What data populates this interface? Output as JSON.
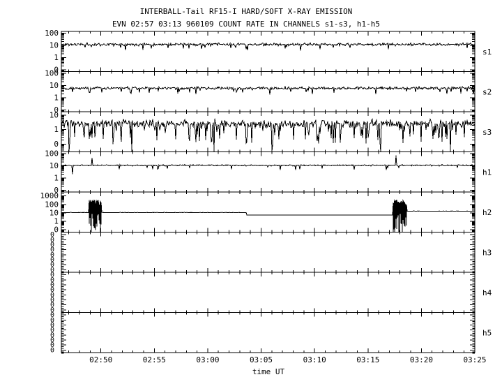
{
  "colors": {
    "foreground": "#000000",
    "background": "#ffffff"
  },
  "chart_data": {
    "type": "line",
    "title": "INTERBALL-Tail RF15-I HARD/SOFT X-RAY EMISSION",
    "subtitle": "EVN 02:57 03:13 960109  COUNT RATE IN CHANNELS s1-s3, h1-h5",
    "xlabel": "time UT",
    "grid": false,
    "legend": "none",
    "x_axis": {
      "start_minute": 166.3,
      "end_minute": 205,
      "minor_tick_minutes": 1,
      "major_ticks": [
        {
          "minute": 170,
          "label": "02:50"
        },
        {
          "minute": 175,
          "label": "02:55"
        },
        {
          "minute": 180,
          "label": "03:00"
        },
        {
          "minute": 185,
          "label": "03:05"
        },
        {
          "minute": 190,
          "label": "03:10"
        },
        {
          "minute": 195,
          "label": "03:15"
        },
        {
          "minute": 200,
          "label": "03:20"
        },
        {
          "minute": 205,
          "label": "03:25"
        }
      ]
    },
    "panels": [
      {
        "id": "s1",
        "label": "s1",
        "scale": "log",
        "ylim": [
          0.07,
          140
        ],
        "yticks": [
          {
            "v": 100,
            "l": "100"
          },
          {
            "v": 10,
            "l": "10"
          },
          {
            "v": 1,
            "l": "1"
          },
          {
            "v": 0.1,
            "l": "0"
          }
        ],
        "signal": {
          "kind": "noisy",
          "base": 12,
          "noise_dex": 0.11,
          "drop_prob": 0.04,
          "drop_factor": 0.5,
          "seed": 11
        }
      },
      {
        "id": "s2",
        "label": "s2",
        "scale": "log",
        "ylim": [
          0.07,
          140
        ],
        "yticks": [
          {
            "v": 100,
            "l": "100"
          },
          {
            "v": 10,
            "l": "10"
          },
          {
            "v": 1,
            "l": "1"
          },
          {
            "v": 0.1,
            "l": "0"
          }
        ],
        "signal": {
          "kind": "noisy",
          "base": 6,
          "noise_dex": 0.11,
          "drop_prob": 0.06,
          "drop_factor": 0.45,
          "seed": 22
        }
      },
      {
        "id": "s3",
        "label": "s3",
        "scale": "log",
        "ylim": [
          0.03,
          17
        ],
        "yticks": [
          {
            "v": 10,
            "l": "10"
          },
          {
            "v": 1,
            "l": "1"
          },
          {
            "v": 0.1,
            "l": "0"
          }
        ],
        "signal": {
          "kind": "noisy",
          "base": 2.6,
          "noise_dex": 0.27,
          "drop_prob": 0.17,
          "drop_factor": 0.12,
          "seed": 33,
          "full_drops_t": [
            167.05,
            172.9,
            180.6,
            186.0,
            196.2,
            202.7
          ]
        }
      },
      {
        "id": "h1",
        "label": "h1",
        "scale": "log",
        "ylim": [
          0.07,
          140
        ],
        "yticks": [
          {
            "v": 100,
            "l": "100"
          },
          {
            "v": 10,
            "l": "10"
          },
          {
            "v": 1,
            "l": "1"
          },
          {
            "v": 0.1,
            "l": "0"
          }
        ],
        "signal": {
          "kind": "noisy",
          "base": 11,
          "noise_dex": 0.055,
          "drop_prob": 0.03,
          "drop_factor": 0.55,
          "seed": 44,
          "spikes": [
            {
              "t": 169.2,
              "v": 45
            },
            {
              "t": 197.6,
              "v": 70
            }
          ],
          "downspikes": [
            {
              "t": 167.35,
              "v": 2
            }
          ]
        }
      },
      {
        "id": "h2",
        "label": "h2",
        "scale": "log",
        "ylim": [
          0.05,
          3000
        ],
        "yticks": [
          {
            "v": 1000,
            "l": "1000"
          },
          {
            "v": 100,
            "l": "100"
          },
          {
            "v": 10,
            "l": "10"
          },
          {
            "v": 1,
            "l": "1"
          },
          {
            "v": 0.1,
            "l": "0"
          }
        ],
        "signal": {
          "kind": "piecewise",
          "seed": 55,
          "segments": [
            {
              "type": "flat",
              "t0": 166.3,
              "t1": 168.85,
              "value": 11
            },
            {
              "type": "burst",
              "t0": 168.85,
              "t1": 170.05,
              "peak_range": [
                60,
                350
              ],
              "floor_range": [
                0.08,
                8
              ],
              "full_drop_prob": 0.3
            },
            {
              "type": "flat",
              "t0": 170.05,
              "t1": 183.6,
              "value": 11
            },
            {
              "type": "flat",
              "t0": 183.6,
              "t1": 197.35,
              "value": 5.5
            },
            {
              "type": "burst",
              "t0": 197.35,
              "t1": 198.65,
              "peak_range": [
                60,
                350
              ],
              "floor_range": [
                0.08,
                8
              ],
              "full_drop_prob": 0.3
            },
            {
              "type": "flat",
              "t0": 198.65,
              "t1": 205,
              "value": 16
            }
          ]
        }
      },
      {
        "id": "h3",
        "label": "h3",
        "scale": "log",
        "empty": true,
        "zero_label": "0",
        "zero_label_count": 8,
        "signal": {
          "kind": "none"
        }
      },
      {
        "id": "h4",
        "label": "h4",
        "scale": "log",
        "empty": true,
        "zero_label": "0",
        "zero_label_count": 8,
        "signal": {
          "kind": "none"
        }
      },
      {
        "id": "h5",
        "label": "h5",
        "scale": "log",
        "empty": true,
        "zero_label": "0",
        "zero_label_count": 8,
        "signal": {
          "kind": "none"
        }
      }
    ]
  }
}
